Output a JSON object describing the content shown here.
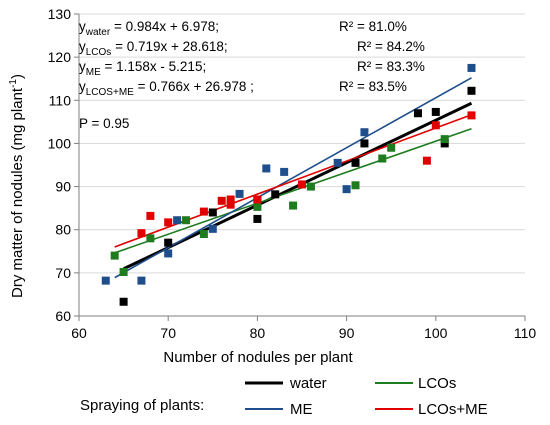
{
  "chart_data": {
    "type": "scatter",
    "xlabel": "Number of nodules per plant",
    "ylabel_main": "Dry matter of nodules (mg plant",
    "ylabel_sup": "-1",
    "ylabel_end": ")",
    "xlim": [
      60,
      110
    ],
    "ylim": [
      60,
      130
    ],
    "xticks": [
      60,
      70,
      80,
      90,
      100,
      110
    ],
    "yticks": [
      60,
      70,
      80,
      90,
      100,
      110,
      120,
      130
    ],
    "grid": "horizontal",
    "annotation": "P = 0.95",
    "equations": [
      {
        "sub": "water",
        "rhs": " = 0.984x + 6.978;",
        "r2": "R² = 81.0%"
      },
      {
        "sub": "LCOs",
        "rhs": " = 0.719x + 28.618;",
        "r2": "R² = 84.2%"
      },
      {
        "sub": "ME",
        "rhs": " = 1.158x - 5.215;",
        "r2": "R² = 83.3%"
      },
      {
        "sub": "LCOS+ME",
        "rhs": " = 0.766x + 26.978 ;",
        "r2": "R² = 83.5%"
      }
    ],
    "legend_title": "Spraying of plants:",
    "series": [
      {
        "name": "water",
        "color": "#000000",
        "fit": {
          "slope": 0.984,
          "intercept": 6.978,
          "x_range": [
            65,
            104
          ]
        },
        "points": [
          [
            65,
            63.3
          ],
          [
            70,
            77
          ],
          [
            75,
            84
          ],
          [
            80,
            82.5
          ],
          [
            80,
            87
          ],
          [
            82,
            88.2
          ],
          [
            91,
            95.5
          ],
          [
            92,
            100
          ],
          [
            98,
            107
          ],
          [
            100,
            107.3
          ],
          [
            101,
            100
          ],
          [
            104,
            112.2
          ]
        ]
      },
      {
        "name": "LCOs",
        "color": "#1e7b1e",
        "fit": {
          "slope": 0.719,
          "intercept": 28.618,
          "x_range": [
            64,
            104
          ]
        },
        "points": [
          [
            64,
            74
          ],
          [
            65,
            70.2
          ],
          [
            68,
            78
          ],
          [
            72,
            82.2
          ],
          [
            74,
            79
          ],
          [
            80,
            85.3
          ],
          [
            84,
            85.6
          ],
          [
            86,
            90
          ],
          [
            91,
            90.3
          ],
          [
            94,
            96.5
          ],
          [
            95,
            99
          ],
          [
            101,
            101
          ]
        ]
      },
      {
        "name": "ME",
        "color": "#1f4e8c",
        "fit": {
          "slope": 1.158,
          "intercept": -5.215,
          "x_range": [
            64,
            104
          ]
        },
        "points": [
          [
            63,
            68.2
          ],
          [
            67,
            68.2
          ],
          [
            70,
            74.5
          ],
          [
            71,
            82.2
          ],
          [
            75,
            80.2
          ],
          [
            78,
            88.3
          ],
          [
            81,
            94.2
          ],
          [
            83,
            93.4
          ],
          [
            89,
            95.5
          ],
          [
            90,
            89.4
          ],
          [
            92,
            102.6
          ],
          [
            104,
            117.5
          ]
        ]
      },
      {
        "name": "LCOs+ME",
        "color": "#e00000",
        "fit": {
          "slope": 0.766,
          "intercept": 26.978,
          "x_range": [
            64,
            104
          ]
        },
        "points": [
          [
            67,
            79.2
          ],
          [
            68,
            83.2
          ],
          [
            70,
            81.7
          ],
          [
            74,
            84.2
          ],
          [
            76,
            86.7
          ],
          [
            77,
            85.8
          ],
          [
            77,
            87
          ],
          [
            80,
            87
          ],
          [
            85,
            90.5
          ],
          [
            99,
            96
          ],
          [
            100,
            104.2
          ],
          [
            104,
            106.5
          ]
        ]
      }
    ]
  }
}
